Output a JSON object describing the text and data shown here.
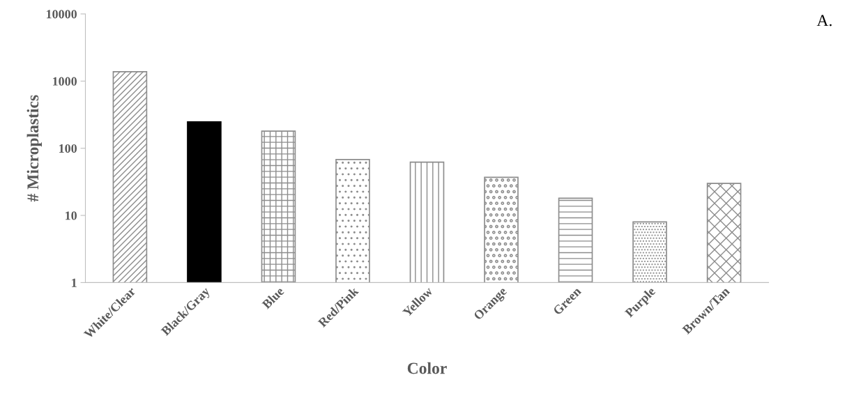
{
  "chart_data": {
    "type": "bar",
    "xlabel": "Color",
    "ylabel": "# Microplastics",
    "categories": [
      "White/Clear",
      "Black/Gray",
      "Blue",
      "Red/Pink",
      "Yellow",
      "Orange",
      "Green",
      "Purple",
      "Brown/Tan"
    ],
    "values": [
      1380,
      247,
      180,
      68,
      62,
      37,
      18,
      8,
      30
    ],
    "colors": [
      "#8c8c8c",
      "#000000",
      "#8c8c8c",
      "#8c8c8c",
      "#8c8c8c",
      "#8c8c8c",
      "#8c8c8c",
      "#8c8c8c",
      "#8c8c8c"
    ],
    "log": "y",
    "ylim": [
      1,
      10000
    ],
    "yticks": [
      1,
      10,
      100,
      1000,
      10000
    ],
    "grid": false,
    "annotations": [
      "A."
    ]
  }
}
